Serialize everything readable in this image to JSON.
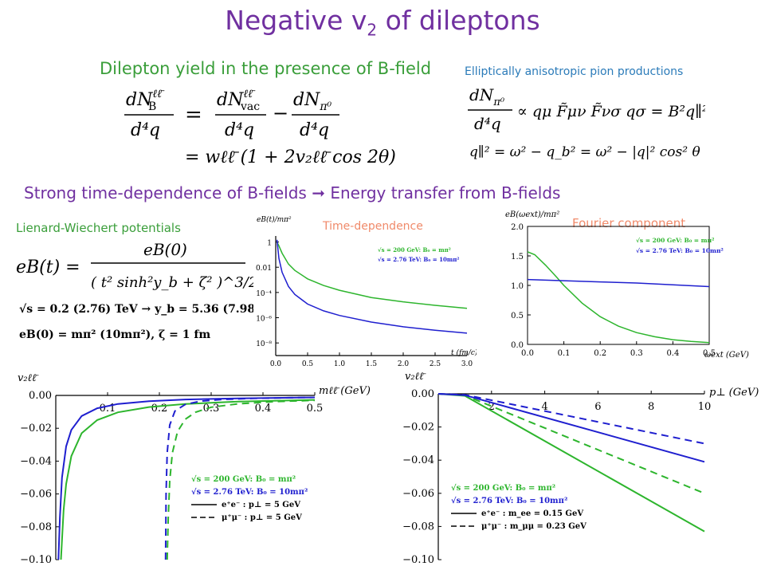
{
  "slide": {
    "title_main": "Negative v",
    "title_sub": "2",
    "title_tail": " of dileptons",
    "subtitle_left": "Dilepton yield in the presence of B-field",
    "subtitle_right": "Elliptically anisotropic pion productions",
    "strong_line_a": "Strong time-dependence of B-fields ",
    "strong_arrow": "➞",
    "strong_line_b": " Energy transfer from B-fields",
    "lw_label": "Lienard-Wiechert  potentials",
    "td_label": "Time-dependence",
    "fc_label": "Fourier component"
  },
  "equations": {
    "eq1_lhs_num": "dN",
    "eq1_lhs_sup": "ℓℓ̄",
    "eq1_lhs_sub": "B",
    "eq1_den": "d⁴q",
    "eq1_eq": "=",
    "eq1_r1_num": "dN",
    "eq1_r1_sub": "vac",
    "eq1_minus": "−",
    "eq1_r2_num": "dN",
    "eq1_r2_sub": "π⁰",
    "eq2": "= wℓℓ̄ (1 + 2v₂ℓℓ̄ cos 2θ)",
    "eq3_rhs": "∝ qμ F̃μν F̃νσ qσ = B²q∥²",
    "eq4": "q∥² = ω² − q_b² = ω² − |q|² cos² θ",
    "eB_lhs": "eB(t) =",
    "eB_num": "eB(0)",
    "eB_den": "( t² sinh²y_b + ζ² )^3/2",
    "sqrt_line": "√s = 0.2 (2.76) TeV → y_b = 5.36 (7.98)",
    "eB0_line": "eB(0) = mπ² (10mπ²),  ζ = 1 fm"
  },
  "chart_data": [
    {
      "type": "line",
      "name": "time-dependence",
      "title": "Time-dependence",
      "ylabel": "eB(t)/mπ²",
      "xlabel": "t (fm/c)",
      "yscale": "log",
      "ylim": [
        1e-09,
        3
      ],
      "xlim": [
        0,
        3.0
      ],
      "xticks": [
        "0.0",
        "0.5",
        "1.0",
        "1.5",
        "2.0",
        "2.5",
        "3.0"
      ],
      "yticks": [
        "1",
        "0.01",
        "10⁻⁴",
        "10⁻⁶",
        "10⁻⁸"
      ],
      "series": [
        {
          "name": "√s = 200 GeV: B₀ = mπ²",
          "color": "#2db52d",
          "x": [
            0.02,
            0.05,
            0.1,
            0.2,
            0.3,
            0.5,
            0.75,
            1.0,
            1.5,
            2.0,
            2.5,
            3.0
          ],
          "y": [
            1.0,
            0.5,
            0.13,
            0.018,
            0.0056,
            0.0012,
            0.00036,
            0.00015,
            4e-05,
            1.8e-05,
            9.5e-06,
            5.5e-06
          ]
        },
        {
          "name": "√s = 2.76 TeV: B₀ = 10mπ²",
          "color": "#1f1fcf",
          "x": [
            0.02,
            0.05,
            0.1,
            0.2,
            0.3,
            0.5,
            0.75,
            1.0,
            1.5,
            2.0,
            2.5,
            3.0
          ],
          "y": [
            1.5,
            0.05,
            0.004,
            0.0003,
            7e-05,
            1.2e-05,
            3.5e-06,
            1.5e-06,
            4.5e-07,
            1.9e-07,
            1e-07,
            6e-08
          ]
        }
      ]
    },
    {
      "type": "line",
      "name": "fourier-component",
      "title": "Fourier component",
      "ylabel": "eB(ωext)/mπ²",
      "xlabel": "ωext (GeV)",
      "xlim": [
        0,
        0.5
      ],
      "ylim": [
        0,
        2.0
      ],
      "xticks": [
        "0.0",
        "0.1",
        "0.2",
        "0.3",
        "0.4",
        "0.5"
      ],
      "yticks": [
        "0.0",
        "0.5",
        "1.0",
        "1.5",
        "2.0"
      ],
      "series": [
        {
          "name": "√s = 200 GeV: B₀ = mπ²",
          "color": "#2db52d",
          "x": [
            0,
            0.02,
            0.05,
            0.08,
            0.1,
            0.15,
            0.2,
            0.25,
            0.3,
            0.35,
            0.4,
            0.45,
            0.5
          ],
          "y": [
            1.57,
            1.52,
            1.34,
            1.14,
            1.0,
            0.7,
            0.47,
            0.31,
            0.2,
            0.13,
            0.08,
            0.05,
            0.03
          ]
        },
        {
          "name": "√s = 2.76 TeV: B₀ = 10mπ²",
          "color": "#1f1fcf",
          "x": [
            0,
            0.1,
            0.2,
            0.3,
            0.4,
            0.5
          ],
          "y": [
            1.1,
            1.08,
            1.06,
            1.04,
            1.01,
            0.98
          ]
        }
      ]
    },
    {
      "type": "line",
      "name": "v2-vs-mass",
      "ylabel": "v₂ℓℓ̄",
      "xlabel": "mℓℓ̄ (GeV)",
      "xlim": [
        0,
        0.5
      ],
      "ylim": [
        -0.1,
        0.0
      ],
      "xticks": [
        "0.1",
        "0.2",
        "0.3",
        "0.4",
        "0.5"
      ],
      "yticks": [
        "0.00",
        "−0.02",
        "−0.04",
        "−0.06",
        "−0.08",
        "−0.10"
      ],
      "legend": [
        "√s = 200 GeV: B₀ = mπ²",
        "√s = 2.76 TeV: B₀ = 10mπ²",
        "e⁺e⁻ : p⊥ = 5 GeV",
        "μ⁺μ⁻ : p⊥ = 5 GeV"
      ],
      "series": [
        {
          "name": "blue solid",
          "color": "#1f1fcf",
          "dash": false,
          "x": [
            0.005,
            0.008,
            0.012,
            0.02,
            0.03,
            0.05,
            0.08,
            0.12,
            0.18,
            0.25,
            0.35,
            0.5
          ],
          "y": [
            -0.1,
            -0.074,
            -0.05,
            -0.031,
            -0.021,
            -0.0125,
            -0.0078,
            -0.0052,
            -0.0035,
            -0.0025,
            -0.0018,
            -0.0012
          ]
        },
        {
          "name": "green solid",
          "color": "#2db52d",
          "dash": false,
          "x": [
            0.01,
            0.015,
            0.02,
            0.03,
            0.05,
            0.08,
            0.12,
            0.18,
            0.25,
            0.35,
            0.5
          ],
          "y": [
            -0.1,
            -0.07,
            -0.054,
            -0.037,
            -0.023,
            -0.015,
            -0.0103,
            -0.0071,
            -0.0052,
            -0.0038,
            -0.0027
          ]
        },
        {
          "name": "blue dashed",
          "color": "#1f1fcf",
          "dash": true,
          "x": [
            0.212,
            0.213,
            0.215,
            0.22,
            0.23,
            0.25,
            0.28,
            0.32,
            0.38,
            0.45,
            0.5
          ],
          "y": [
            -0.1,
            -0.06,
            -0.035,
            -0.018,
            -0.0095,
            -0.0055,
            -0.0035,
            -0.0025,
            -0.0018,
            -0.0014,
            -0.0012
          ]
        },
        {
          "name": "green dashed",
          "color": "#2db52d",
          "dash": true,
          "x": [
            0.215,
            0.217,
            0.22,
            0.225,
            0.235,
            0.25,
            0.27,
            0.3,
            0.35,
            0.42,
            0.5
          ],
          "y": [
            -0.1,
            -0.075,
            -0.052,
            -0.035,
            -0.022,
            -0.0145,
            -0.0102,
            -0.0072,
            -0.0052,
            -0.0038,
            -0.003
          ]
        }
      ]
    },
    {
      "type": "line",
      "name": "v2-vs-pt",
      "ylabel": "v₂ℓℓ̄",
      "xlabel": "p⊥ (GeV)",
      "xlim": [
        0,
        10
      ],
      "ylim": [
        -0.1,
        0.0
      ],
      "xticks": [
        "2",
        "4",
        "6",
        "8",
        "10"
      ],
      "yticks": [
        "0.00",
        "−0.02",
        "−0.04",
        "−0.06",
        "−0.08",
        "−0.10"
      ],
      "legend": [
        "√s = 200 GeV: B₀ = mπ²",
        "√s = 2.76 TeV: B₀ = 10mπ²",
        "e⁺e⁻ : m_ee = 0.15 GeV",
        "μ⁺μ⁻ : m_μμ = 0.23 GeV"
      ],
      "series": [
        {
          "name": "green solid",
          "color": "#2db52d",
          "dash": false,
          "x": [
            0,
            1,
            10
          ],
          "y": [
            0,
            -0.0012,
            -0.083
          ]
        },
        {
          "name": "green dashed",
          "color": "#2db52d",
          "dash": true,
          "x": [
            0,
            1,
            10
          ],
          "y": [
            0,
            -0.0009,
            -0.06
          ]
        },
        {
          "name": "blue solid",
          "color": "#1f1fcf",
          "dash": false,
          "x": [
            0,
            1,
            10
          ],
          "y": [
            0,
            -0.0008,
            -0.041
          ]
        },
        {
          "name": "blue dashed",
          "color": "#1f1fcf",
          "dash": true,
          "x": [
            0,
            1,
            10
          ],
          "y": [
            0,
            -0.0006,
            -0.03
          ]
        }
      ]
    }
  ]
}
